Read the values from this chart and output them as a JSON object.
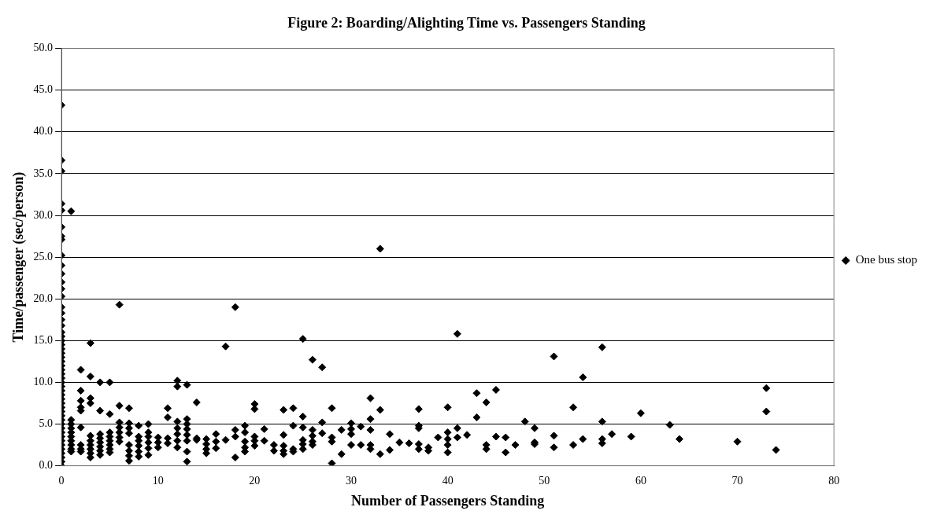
{
  "chart_data": {
    "type": "scatter",
    "title": "Figure 2: Boarding/Alighting Time vs. Passengers Standing",
    "xlabel": "Number of Passengers Standing",
    "ylabel": "Time/passenger (sec/person)",
    "xlim": [
      0,
      80
    ],
    "xticks": [
      0,
      10,
      20,
      30,
      40,
      50,
      60,
      70,
      80
    ],
    "ylim": [
      0,
      50
    ],
    "yticks": [
      {
        "value": 0,
        "label": "0.0"
      },
      {
        "value": 5,
        "label": "5.0"
      },
      {
        "value": 10,
        "label": "10.0"
      },
      {
        "value": 15,
        "label": "15.0"
      },
      {
        "value": 20,
        "label": "20.0"
      },
      {
        "value": 25,
        "label": "25.0"
      },
      {
        "value": 30,
        "label": "30.0"
      },
      {
        "value": 35,
        "label": "35.0"
      },
      {
        "value": 40,
        "label": "40.0"
      },
      {
        "value": 45,
        "label": "45.0"
      },
      {
        "value": 50,
        "label": "50.0"
      }
    ],
    "grid": "y",
    "legend": "right",
    "marker": "diamond",
    "series": [
      {
        "name": "One bus stop",
        "color": "#000000",
        "x": [
          0,
          0,
          0,
          0,
          0,
          0,
          0,
          0,
          0,
          0,
          0,
          0,
          0,
          0,
          0,
          0,
          0,
          0,
          0,
          0,
          0,
          0,
          0,
          0,
          0,
          0,
          0,
          0,
          0,
          0,
          0,
          0,
          0,
          0,
          0,
          0,
          0,
          0,
          0,
          0,
          0,
          0,
          0,
          0,
          0,
          0,
          0,
          0,
          0,
          0,
          0,
          1,
          1,
          1,
          1,
          1,
          1,
          1,
          1,
          1,
          1,
          2,
          2,
          2,
          2,
          2,
          2,
          2,
          2,
          2,
          3,
          3,
          3,
          3,
          3,
          3,
          3,
          3,
          3,
          3,
          4,
          4,
          4,
          4,
          4,
          4,
          4,
          4,
          5,
          5,
          5,
          5,
          5,
          5,
          5,
          5,
          6,
          6,
          6,
          6,
          6,
          6,
          6,
          7,
          7,
          7,
          7,
          7,
          7,
          7,
          7,
          8,
          8,
          8,
          8,
          8,
          8,
          9,
          9,
          9,
          9,
          9,
          9,
          10,
          10,
          10,
          11,
          11,
          11,
          11,
          12,
          12,
          12,
          12,
          12,
          12,
          12,
          13,
          13,
          13,
          13,
          13,
          13,
          13,
          13,
          14,
          14,
          14,
          15,
          15,
          15,
          15,
          16,
          16,
          16,
          17,
          17,
          18,
          18,
          18,
          18,
          19,
          19,
          19,
          19,
          19,
          20,
          20,
          20,
          20,
          20,
          21,
          21,
          22,
          22,
          23,
          23,
          23,
          23,
          23,
          24,
          24,
          24,
          24,
          25,
          25,
          25,
          25,
          25,
          25,
          26,
          26,
          26,
          26,
          26,
          27,
          27,
          27,
          28,
          28,
          28,
          28,
          29,
          29,
          30,
          30,
          30,
          30,
          31,
          31,
          32,
          32,
          32,
          32,
          32,
          33,
          33,
          33,
          34,
          34,
          35,
          36,
          37,
          37,
          37,
          37,
          37,
          38,
          38,
          39,
          40,
          40,
          40,
          40,
          40,
          41,
          41,
          41,
          42,
          43,
          43,
          44,
          44,
          44,
          45,
          45,
          46,
          46,
          47,
          48,
          49,
          49,
          49,
          51,
          51,
          51,
          53,
          53,
          54,
          54,
          56,
          56,
          56,
          56,
          57,
          59,
          60,
          63,
          64,
          70,
          73,
          73,
          74
        ],
        "values": [
          43.2,
          36.6,
          35.3,
          31.4,
          30.6,
          28.6,
          27.5,
          27.1,
          25.2,
          24.0,
          23.0,
          22.0,
          21.2,
          20.3,
          19.0,
          18.3,
          17.5,
          16.8,
          16.0,
          15.5,
          15.0,
          14.5,
          14.0,
          13.5,
          13.0,
          12.5,
          12.0,
          11.5,
          11.0,
          10.5,
          10.0,
          9.5,
          9.0,
          8.5,
          8.0,
          7.5,
          7.0,
          6.5,
          6.0,
          5.5,
          5.0,
          4.5,
          4.0,
          3.5,
          3.0,
          2.5,
          2.0,
          1.5,
          1.0,
          0.5,
          0.0,
          30.5,
          5.5,
          5.0,
          4.5,
          4.0,
          3.5,
          3.0,
          2.5,
          2.0,
          1.7,
          11.5,
          9.0,
          7.8,
          7.0,
          6.6,
          4.6,
          2.5,
          2.0,
          1.7,
          14.7,
          10.7,
          8.1,
          7.5,
          3.6,
          3.0,
          2.5,
          2.0,
          1.5,
          1.0,
          10.0,
          6.6,
          3.8,
          3.3,
          2.8,
          2.3,
          1.8,
          1.3,
          10.0,
          6.2,
          4.0,
          3.5,
          3.0,
          2.5,
          2.0,
          1.6,
          19.3,
          7.2,
          5.2,
          4.6,
          4.0,
          3.4,
          2.9,
          6.9,
          5.1,
          4.5,
          3.9,
          2.5,
          1.8,
          1.2,
          0.6,
          4.8,
          3.5,
          3.0,
          2.4,
          1.7,
          1.1,
          5.0,
          4.0,
          3.5,
          2.8,
          2.1,
          1.3,
          3.4,
          2.8,
          2.2,
          6.9,
          5.8,
          3.3,
          2.7,
          10.2,
          9.5,
          5.3,
          4.5,
          3.8,
          3.0,
          2.2,
          9.7,
          5.6,
          5.0,
          4.4,
          3.7,
          3.0,
          1.7,
          0.5,
          7.6,
          3.3,
          3.1,
          3.2,
          2.6,
          2.0,
          1.5,
          3.8,
          2.9,
          2.1,
          14.3,
          3.1,
          19.0,
          4.3,
          3.5,
          1.0,
          4.8,
          4.0,
          2.9,
          2.2,
          1.7,
          7.4,
          6.8,
          3.5,
          3.0,
          2.4,
          4.4,
          3.0,
          2.5,
          1.8,
          6.7,
          3.7,
          2.4,
          1.8,
          1.4,
          6.9,
          4.8,
          2.0,
          1.7,
          15.2,
          5.9,
          4.6,
          3.1,
          2.6,
          2.0,
          12.7,
          4.3,
          3.6,
          2.9,
          2.5,
          11.8,
          5.2,
          3.9,
          6.9,
          3.4,
          2.9,
          0.3,
          4.3,
          1.4,
          5.1,
          4.4,
          3.8,
          2.5,
          4.7,
          2.5,
          8.1,
          5.6,
          4.3,
          2.5,
          2.0,
          26.0,
          6.7,
          1.4,
          3.8,
          1.9,
          2.8,
          2.7,
          6.8,
          4.8,
          4.5,
          2.6,
          2.0,
          2.2,
          1.8,
          3.4,
          7.0,
          4.0,
          3.2,
          2.5,
          1.6,
          15.8,
          4.5,
          3.4,
          3.7,
          8.7,
          5.8,
          7.6,
          2.5,
          2.0,
          9.1,
          3.5,
          3.4,
          1.6,
          2.5,
          5.3,
          4.5,
          2.8,
          2.6,
          13.1,
          3.6,
          2.2,
          7.0,
          2.5,
          10.6,
          3.2,
          14.2,
          5.3,
          3.2,
          2.7,
          3.8,
          3.5,
          6.3,
          4.9,
          3.2,
          2.9,
          9.3,
          6.5,
          1.9
        ]
      }
    ]
  }
}
